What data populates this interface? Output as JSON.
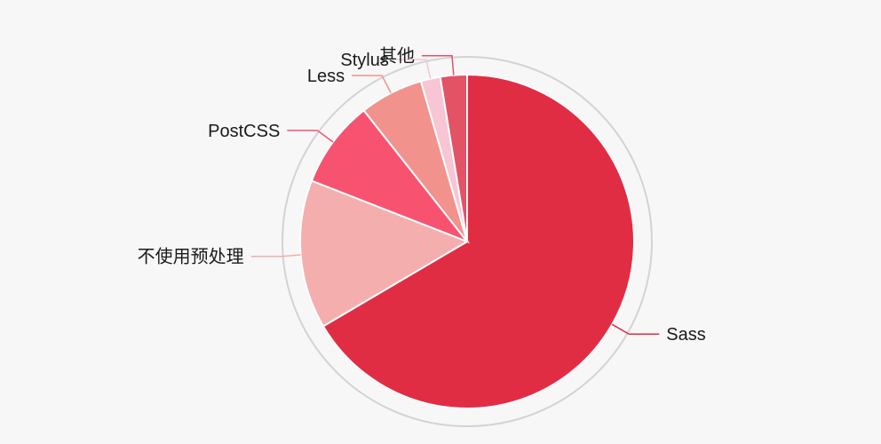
{
  "chart_data": {
    "type": "pie",
    "title": "",
    "slices": [
      {
        "label": "Sass",
        "value": 67.0,
        "color": "#e12d44"
      },
      {
        "label": "不使用预处理",
        "value": 14.5,
        "color": "#f5aeae"
      },
      {
        "label": "PostCSS",
        "value": 8.5,
        "color": "#f75370"
      },
      {
        "label": "Less",
        "value": 6.2,
        "color": "#f2928c"
      },
      {
        "label": "Stylus",
        "value": 1.9,
        "color": "#f7c5d3"
      },
      {
        "label": "其他",
        "value": 2.6,
        "color": "#e35265"
      }
    ],
    "legend": "none",
    "outer_ring": true
  }
}
